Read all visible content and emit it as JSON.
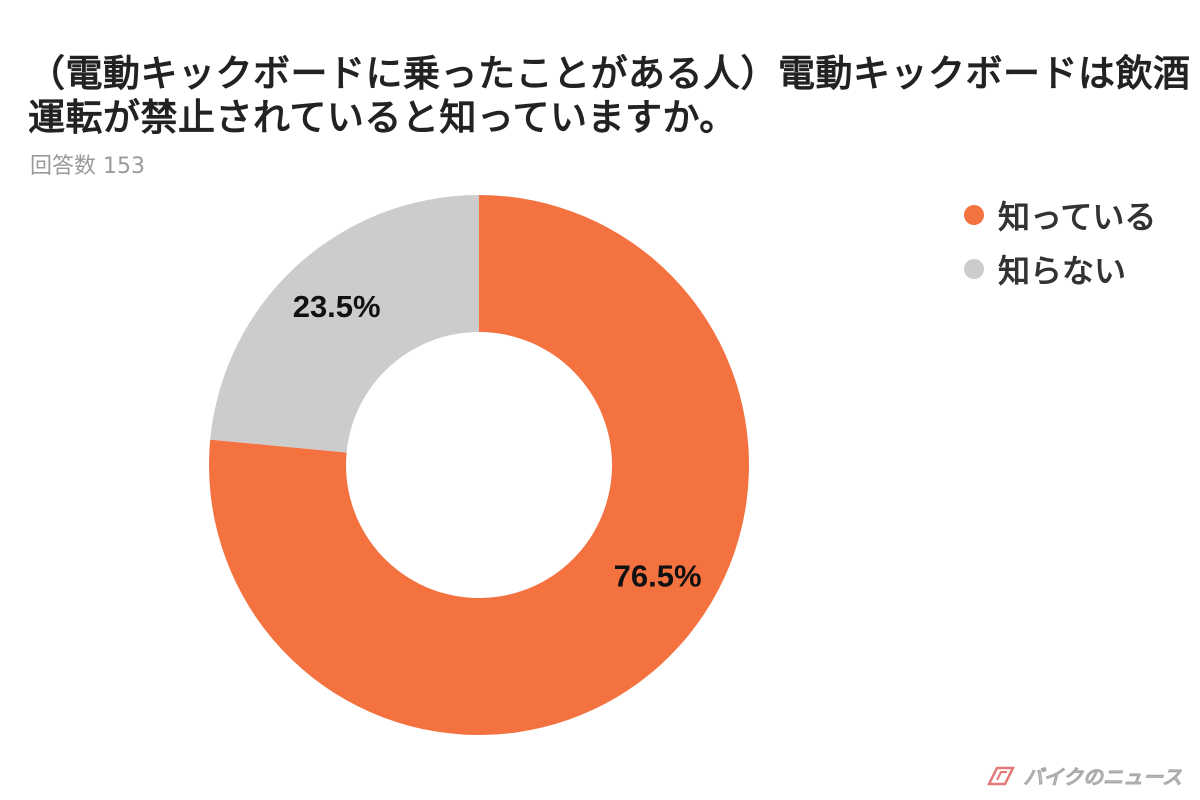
{
  "title_lines": [
    "（電動キックボードに乗ったことがある人）電動キックボードは飲酒",
    "運転が禁止されていると知っていますか。"
  ],
  "subtitle": "回答数 153",
  "watermark": "バイクのニュース",
  "chart_data": {
    "type": "pie",
    "donut": true,
    "labels": [
      "知っている",
      "知らない"
    ],
    "values": [
      76.5,
      23.5
    ],
    "data_labels": [
      "76.5%",
      "23.5%"
    ],
    "colors": [
      "#f47240",
      "#cccccc"
    ],
    "legend_position": "top-right",
    "start": "top",
    "direction": "clockwise"
  }
}
